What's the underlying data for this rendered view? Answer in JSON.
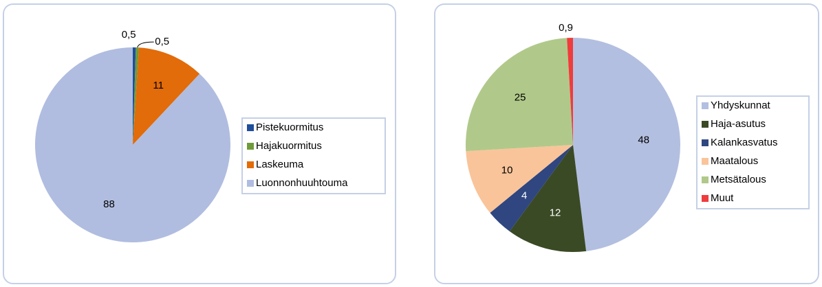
{
  "chart_data": [
    {
      "type": "pie",
      "categories": [
        "Pistekuormitus",
        "Hajakuormitus",
        "Laskeuma",
        "Luonnonhuuhtouma"
      ],
      "values": [
        0.5,
        0.5,
        11,
        88
      ],
      "value_labels": [
        "0,5",
        "0,5",
        "11",
        "88"
      ],
      "colors": [
        "#1f4e9a",
        "#6f9a3a",
        "#e26b0a",
        "#b0bde0"
      ],
      "legend": "right"
    },
    {
      "type": "pie",
      "categories": [
        "Yhdyskunnat",
        "Haja-asutus",
        "Kalankasvatus",
        "Maatalous",
        "Metsätalous",
        "Muut"
      ],
      "values": [
        48,
        12,
        4,
        10,
        25,
        0.9
      ],
      "value_labels": [
        "48",
        "12",
        "4",
        "10",
        "25",
        "0,9"
      ],
      "colors": [
        "#b3bfe0",
        "#3a4a25",
        "#2f4680",
        "#f9c49a",
        "#b0c98a",
        "#f03c3c"
      ],
      "legend": "right"
    }
  ]
}
